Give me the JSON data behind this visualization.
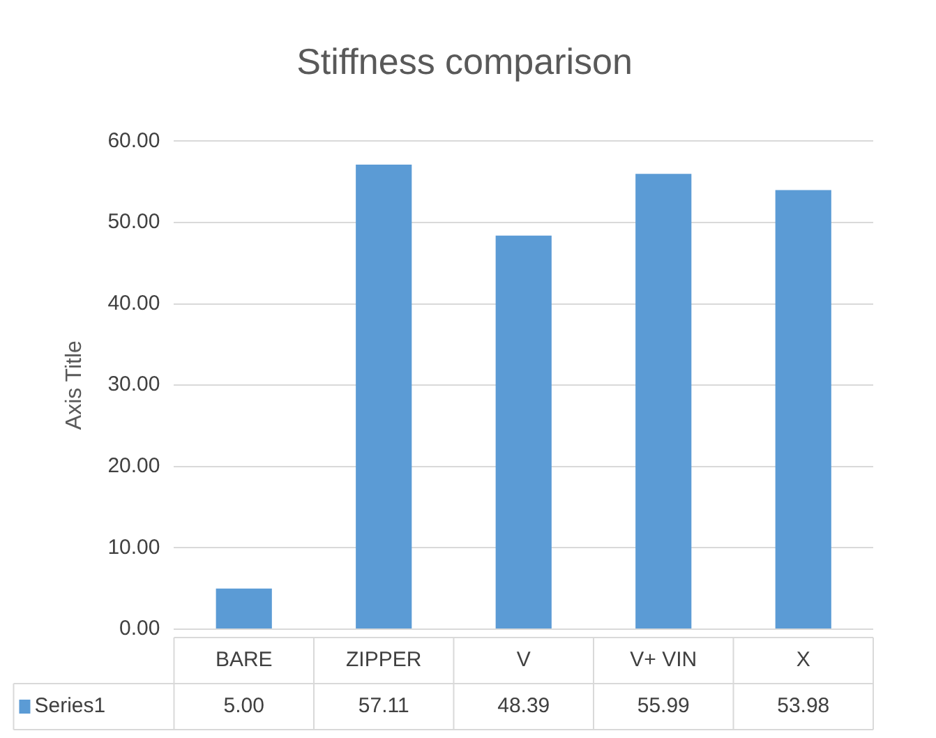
{
  "chart_data": {
    "type": "bar",
    "title": "Stiffness comparison",
    "ylabel": "Axis Title",
    "categories": [
      "BARE",
      "ZIPPER",
      "V",
      "V+ VIN",
      "X"
    ],
    "series": [
      {
        "name": "Series1",
        "color": "#5b9bd5",
        "values": [
          5.0,
          57.11,
          48.39,
          55.99,
          53.98
        ],
        "value_labels": [
          "5.00",
          "57.11",
          "48.39",
          "55.99",
          "53.98"
        ]
      }
    ],
    "ylim": [
      0,
      60
    ],
    "yticks": [
      {
        "value": 0,
        "label": "0.00"
      },
      {
        "value": 10,
        "label": "10.00"
      },
      {
        "value": 20,
        "label": "20.00"
      },
      {
        "value": 30,
        "label": "30.00"
      },
      {
        "value": 40,
        "label": "40.00"
      },
      {
        "value": 50,
        "label": "50.00"
      },
      {
        "value": 60,
        "label": "60.00"
      }
    ],
    "grid": "y",
    "legend": "bottom"
  }
}
